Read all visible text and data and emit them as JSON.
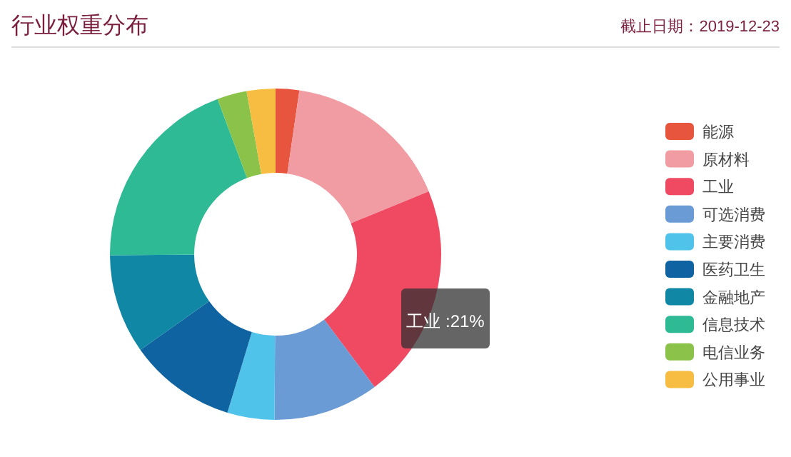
{
  "chart_data": {
    "type": "donut",
    "title": "行业权重分布",
    "subtitle": "截止日期：2019-12-23",
    "categories": [
      "能源",
      "原材料",
      "工业",
      "可选消费",
      "主要消费",
      "医药卫生",
      "金融地产",
      "信息技术",
      "电信业务",
      "公用事业"
    ],
    "values": [
      2.3,
      16.5,
      21,
      10.3,
      4.6,
      10.5,
      9.7,
      19.4,
      2.9,
      2.8
    ],
    "colors": [
      "#e8553f",
      "#f19ca3",
      "#ef4a62",
      "#6a9bd4",
      "#4fc3ea",
      "#0f63a0",
      "#1087a4",
      "#2fba96",
      "#8bc34a",
      "#f6bd42"
    ],
    "annotations": [
      "工业 :21%"
    ],
    "legend": "right"
  }
}
